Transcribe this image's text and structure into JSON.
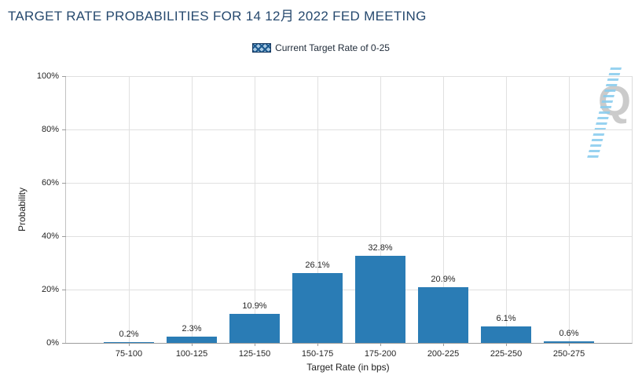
{
  "title": "TARGET RATE PROBABILITIES FOR 14 12月 2022 FED MEETING",
  "legend": {
    "label": "Current Target Rate of 0-25"
  },
  "watermark": {
    "letter": "Q"
  },
  "colors": {
    "bar": "#2a7cb5",
    "title_text": "#26496e",
    "gridline": "#e0e0e0",
    "axis_line": "#9c9c9c",
    "legend_swatch_border": "#16365c",
    "watermark_gray": "#cbcbcb",
    "watermark_blue": "#8ccdee"
  },
  "chart_data": {
    "type": "bar",
    "title": "TARGET RATE PROBABILITIES FOR 14 12月 2022 FED MEETING",
    "categories": [
      "75-100",
      "100-125",
      "125-150",
      "150-175",
      "175-200",
      "200-225",
      "225-250",
      "250-275"
    ],
    "series": [
      {
        "name": "Current Target Rate of 0-25",
        "values": [
          0.2,
          2.3,
          10.9,
          26.1,
          32.8,
          20.9,
          6.1,
          0.6
        ]
      }
    ],
    "value_labels": [
      "0.2%",
      "2.3%",
      "10.9%",
      "26.1%",
      "32.8%",
      "20.9%",
      "6.1%",
      "0.6%"
    ],
    "xlabel": "Target Rate (in bps)",
    "ylabel": "Probability",
    "ylim": [
      0,
      100
    ],
    "yticks": [
      "0%",
      "20%",
      "40%",
      "60%",
      "80%",
      "100%"
    ],
    "grid": true,
    "legend_position": "top"
  }
}
